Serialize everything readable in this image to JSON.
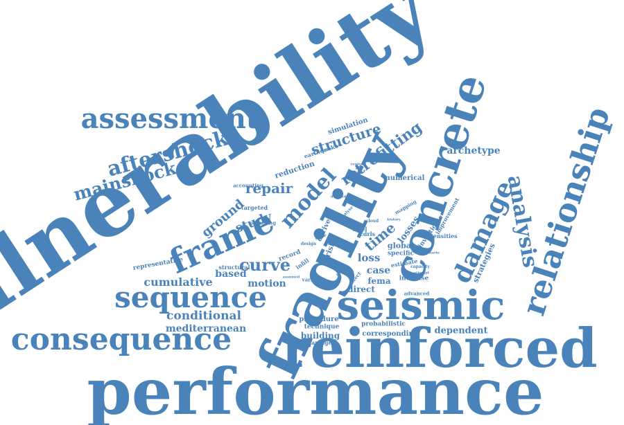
{
  "words": {
    "vulnerability": "vulnerability",
    "performance": "performance",
    "reinforced": "reinforced",
    "fragility": "fragility",
    "concrete": "concrete",
    "seismic": "seismic",
    "relationship": "relationship",
    "consequence": "consequence",
    "frame": "frame",
    "sequence": "sequence",
    "assessment": "assessment",
    "damage": "damage",
    "analysis": "analysis",
    "aftershock": "aftershock",
    "mainshock": "mainshock",
    "model": "model",
    "retrofitting": "retrofitting",
    "structure": "structure",
    "repair": "repair",
    "ground": "ground",
    "study": "study",
    "curve": "curve",
    "cumulative": "cumulative",
    "based": "based",
    "motion": "motion",
    "conditional": "conditional",
    "mediterranean": "mediterranean",
    "archetype": "archetype",
    "time": "time",
    "loss": "loss",
    "losses": "losses",
    "case": "case",
    "fema": "fema",
    "direct": "direct",
    "global": "global",
    "specific": "specific",
    "strategies": "strategies",
    "investigate": "investigate",
    "improvement": "improvement",
    "numerical": "numerical",
    "simulation": "simulation",
    "earthquake": "earthquake",
    "reduction": "reduction",
    "accounting": "accounting",
    "targeted": "targeted",
    "sampling": "sampling",
    "representative": "representative",
    "structural": "structural",
    "record": "record",
    "infill": "infill",
    "derive": "derive",
    "risk": "risk",
    "level": "level",
    "cdrls": "cdrls",
    "intensities": "intensities",
    "estimate": "estimate",
    "increase": "increase",
    "advanced": "advanced",
    "effect": "effect",
    "various": "various",
    "procedure": "procedure",
    "technique": "technique",
    "probabilistic": "probabilistic",
    "building": "building",
    "corresponding": "corresponding",
    "undamaged": "undamaged",
    "dependent": "dependent",
    "design": "design",
    "state": "state",
    "demand": "demand",
    "cloud": "cloud",
    "analyse": "analyse",
    "history": "history",
    "mapping": "mapping",
    "capacity": "capacity",
    "attempt": "attempt",
    "scenario": "scenario",
    "assumed": "assumed",
    "peak": "peak",
    "region": "region"
  },
  "colors": {
    "word": "#4a83b9",
    "background": "#ffffff"
  }
}
